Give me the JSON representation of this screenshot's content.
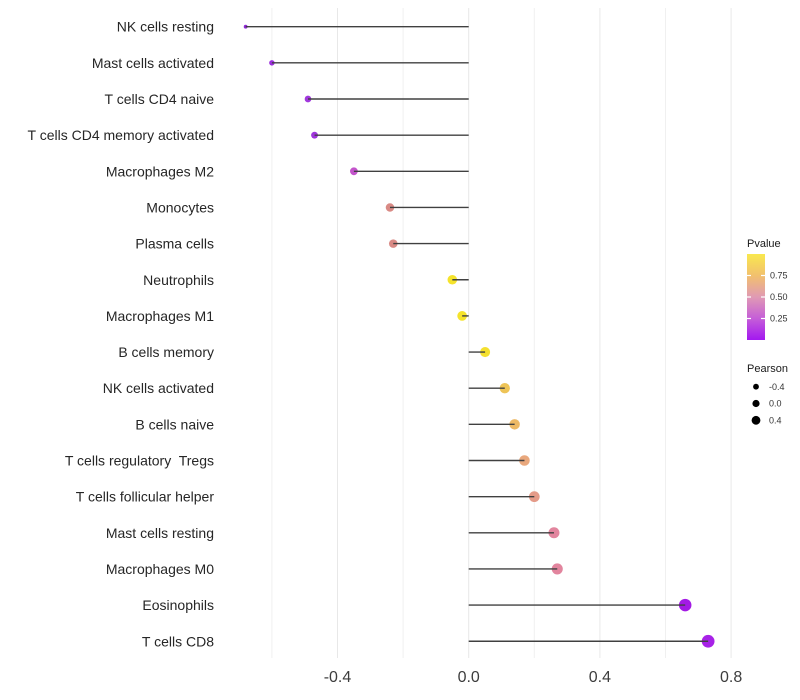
{
  "chart_data": {
    "type": "scatter",
    "subtype": "lollipop",
    "title": "",
    "xlabel": "",
    "ylabel": "",
    "xlim": [
      -0.77,
      0.83
    ],
    "grid": "vertical-only",
    "baseline_x": 0,
    "x_major_ticks": [
      -0.4,
      0.0,
      0.4,
      0.8
    ],
    "x_major_tick_labels": [
      "-0.4",
      "0.0",
      "0.4",
      "0.8"
    ],
    "x_minor_ticks": [
      -0.6,
      -0.2,
      0.2,
      0.6
    ],
    "points": [
      {
        "label": "NK cells resting",
        "pearson": -0.68,
        "color": "#9028d8"
      },
      {
        "label": "Mast cells activated",
        "pearson": -0.6,
        "color": "#9b2fdd"
      },
      {
        "label": "T cells CD4 naive",
        "pearson": -0.49,
        "color": "#a138dd"
      },
      {
        "label": "T cells CD4 memory activated",
        "pearson": -0.47,
        "color": "#9f36dc"
      },
      {
        "label": "Macrophages M2",
        "pearson": -0.35,
        "color": "#c355cb"
      },
      {
        "label": "Monocytes",
        "pearson": -0.24,
        "color": "#d98a85"
      },
      {
        "label": "Plasma cells",
        "pearson": -0.23,
        "color": "#d98a85"
      },
      {
        "label": "Neutrophils",
        "pearson": -0.05,
        "color": "#f5e32b"
      },
      {
        "label": "Macrophages M1",
        "pearson": -0.02,
        "color": "#f5e32b"
      },
      {
        "label": "B cells memory",
        "pearson": 0.05,
        "color": "#f4e02e"
      },
      {
        "label": "NK cells activated",
        "pearson": 0.11,
        "color": "#eec457"
      },
      {
        "label": "B cells naive",
        "pearson": 0.14,
        "color": "#edb965"
      },
      {
        "label": "T cells regulatory  Tregs",
        "pearson": 0.17,
        "color": "#e9a87d"
      },
      {
        "label": "T cells follicular helper",
        "pearson": 0.2,
        "color": "#e49b89"
      },
      {
        "label": "Mast cells resting",
        "pearson": 0.26,
        "color": "#e2859e"
      },
      {
        "label": "Macrophages M0",
        "pearson": 0.27,
        "color": "#e2859e"
      },
      {
        "label": "Eosinophils",
        "pearson": 0.66,
        "color": "#a31ae4"
      },
      {
        "label": "T cells CD8",
        "pearson": 0.73,
        "color": "#a722e7"
      }
    ],
    "legend_pvalue": {
      "title": "Pvalue",
      "tick_labels": [
        "0.75",
        "0.50",
        "0.25"
      ],
      "tick_values": [
        0.75,
        0.5,
        0.25
      ],
      "gradient_stops": [
        {
          "at": 0.0,
          "color": "#a318f0"
        },
        {
          "at": 0.25,
          "color": "#c55ed8"
        },
        {
          "at": 0.5,
          "color": "#e09ab4"
        },
        {
          "at": 0.75,
          "color": "#f2c06e"
        },
        {
          "at": 1.0,
          "color": "#f9e84e"
        }
      ]
    },
    "legend_pearson": {
      "title": "Pearson",
      "items": [
        {
          "label": "-0.4",
          "value": -0.4
        },
        {
          "label": "0.0",
          "value": 0.0
        },
        {
          "label": "0.4",
          "value": 0.4
        }
      ]
    },
    "colors": {
      "stick": "#404040",
      "grid_major": "#e8e8e8",
      "grid_minor": "#f0f0f0",
      "x_tick_text": "#3d3d3d",
      "y_label_text": "#262626",
      "legend_title_text": "#1a1a1a",
      "legend_item_text": "#333333",
      "legend_dot": "#000000",
      "background": "#ffffff"
    }
  }
}
